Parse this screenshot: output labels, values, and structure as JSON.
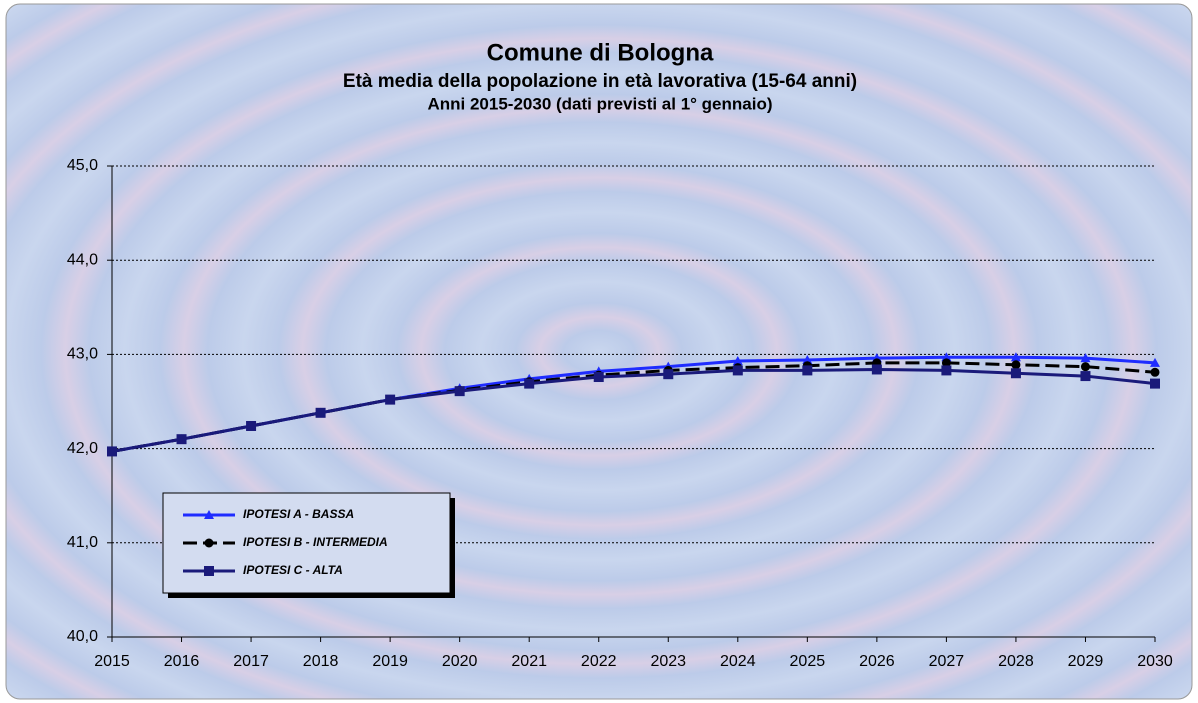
{
  "chart_data": {
    "type": "line",
    "title": "Comune di Bologna",
    "subtitle": [
      "Età media della popolazione in età lavorativa (15-64 anni)",
      "Anni 2015-2030 (dati previsti al 1° gennaio)"
    ],
    "categories": [
      "2015",
      "2016",
      "2017",
      "2018",
      "2019",
      "2020",
      "2021",
      "2022",
      "2023",
      "2024",
      "2025",
      "2026",
      "2027",
      "2028",
      "2029",
      "2030"
    ],
    "series": [
      {
        "name": "IPOTESI A - BASSA",
        "color": "#1f2cff",
        "marker": "triangle",
        "dash": false,
        "values": [
          41.97,
          42.1,
          42.24,
          42.38,
          42.52,
          42.64,
          42.74,
          42.82,
          42.87,
          42.93,
          42.94,
          42.96,
          42.97,
          42.97,
          42.96,
          42.91
        ]
      },
      {
        "name": "IPOTESI B - INTERMEDIA",
        "color": "#000000",
        "marker": "circle",
        "dash": true,
        "values": [
          41.97,
          42.1,
          42.24,
          42.38,
          42.52,
          42.62,
          42.71,
          42.78,
          42.83,
          42.86,
          42.88,
          42.91,
          42.91,
          42.89,
          42.87,
          42.81
        ]
      },
      {
        "name": "IPOTESI C - ALTA",
        "color": "#1a1a7a",
        "marker": "square",
        "dash": false,
        "values": [
          41.97,
          42.1,
          42.24,
          42.38,
          42.52,
          42.61,
          42.69,
          42.76,
          42.79,
          42.83,
          42.83,
          42.84,
          42.83,
          42.8,
          42.77,
          42.69
        ]
      }
    ],
    "ylim": [
      40,
      45
    ],
    "yticks": [
      {
        "value": 40,
        "label": "40,0"
      },
      {
        "value": 41,
        "label": "41,0"
      },
      {
        "value": 42,
        "label": "42,0"
      },
      {
        "value": 43,
        "label": "43,0"
      },
      {
        "value": 44,
        "label": "44,0"
      },
      {
        "value": 45,
        "label": "45,0"
      }
    ],
    "grid": true
  }
}
